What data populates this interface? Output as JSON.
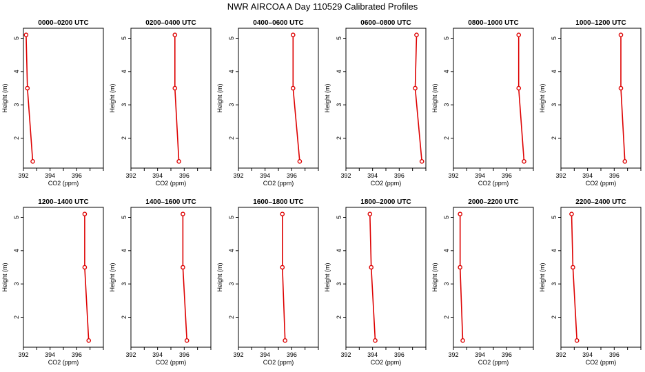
{
  "title": "NWR AIRCOA A  Day 110529  Calibrated Profiles",
  "colors": {
    "series": "#dd0000",
    "frame": "#000000",
    "background": "#ffffff"
  },
  "chart_data": [
    {
      "type": "line",
      "title": "0000–0200 UTC",
      "xlabel": "CO2 (ppm)",
      "ylabel": "Height (m)",
      "xlim": [
        392,
        398
      ],
      "ylim": [
        1.1,
        5.3
      ],
      "xticks": [
        392,
        394,
        396
      ],
      "yticks": [
        2,
        3,
        4,
        5
      ],
      "grid": false,
      "x": [
        392.2,
        392.3,
        392.7
      ],
      "y": [
        5.1,
        3.5,
        1.3
      ]
    },
    {
      "type": "line",
      "title": "0200–0400 UTC",
      "xlabel": "CO2 (ppm)",
      "ylabel": "Height (m)",
      "xlim": [
        392,
        398
      ],
      "ylim": [
        1.1,
        5.3
      ],
      "xticks": [
        392,
        394,
        396
      ],
      "yticks": [
        2,
        3,
        4,
        5
      ],
      "grid": false,
      "x": [
        395.3,
        395.3,
        395.6
      ],
      "y": [
        5.1,
        3.5,
        1.3
      ]
    },
    {
      "type": "line",
      "title": "0400–0600 UTC",
      "xlabel": "CO2 (ppm)",
      "ylabel": "Height (m)",
      "xlim": [
        392,
        398
      ],
      "ylim": [
        1.1,
        5.3
      ],
      "xticks": [
        392,
        394,
        396
      ],
      "yticks": [
        2,
        3,
        4,
        5
      ],
      "grid": false,
      "x": [
        396.1,
        396.1,
        396.6
      ],
      "y": [
        5.1,
        3.5,
        1.3
      ]
    },
    {
      "type": "line",
      "title": "0600–0800 UTC",
      "xlabel": "CO2 (ppm)",
      "ylabel": "Height (m)",
      "xlim": [
        392,
        398
      ],
      "ylim": [
        1.1,
        5.3
      ],
      "xticks": [
        392,
        394,
        396
      ],
      "yticks": [
        2,
        3,
        4,
        5
      ],
      "grid": false,
      "x": [
        397.3,
        397.2,
        397.7
      ],
      "y": [
        5.1,
        3.5,
        1.3
      ]
    },
    {
      "type": "line",
      "title": "0800–1000 UTC",
      "xlabel": "CO2 (ppm)",
      "ylabel": "Height (m)",
      "xlim": [
        392,
        398
      ],
      "ylim": [
        1.1,
        5.3
      ],
      "xticks": [
        392,
        394,
        396
      ],
      "yticks": [
        2,
        3,
        4,
        5
      ],
      "grid": false,
      "x": [
        396.9,
        396.9,
        397.3
      ],
      "y": [
        5.1,
        3.5,
        1.3
      ]
    },
    {
      "type": "line",
      "title": "1000–1200 UTC",
      "xlabel": "CO2 (ppm)",
      "ylabel": "Height (m)",
      "xlim": [
        392,
        398
      ],
      "ylim": [
        1.1,
        5.3
      ],
      "xticks": [
        392,
        394,
        396
      ],
      "yticks": [
        2,
        3,
        4,
        5
      ],
      "grid": false,
      "x": [
        396.5,
        396.5,
        396.8
      ],
      "y": [
        5.1,
        3.5,
        1.3
      ]
    },
    {
      "type": "line",
      "title": "1200–1400 UTC",
      "xlabel": "CO2 (ppm)",
      "ylabel": "Height (m)",
      "xlim": [
        392,
        398
      ],
      "ylim": [
        1.1,
        5.3
      ],
      "xticks": [
        392,
        394,
        396
      ],
      "yticks": [
        2,
        3,
        4,
        5
      ],
      "grid": false,
      "x": [
        396.6,
        396.6,
        396.9
      ],
      "y": [
        5.1,
        3.5,
        1.3
      ]
    },
    {
      "type": "line",
      "title": "1400–1600 UTC",
      "xlabel": "CO2 (ppm)",
      "ylabel": "Height (m)",
      "xlim": [
        392,
        398
      ],
      "ylim": [
        1.1,
        5.3
      ],
      "xticks": [
        392,
        394,
        396
      ],
      "yticks": [
        2,
        3,
        4,
        5
      ],
      "grid": false,
      "x": [
        395.9,
        395.9,
        396.2
      ],
      "y": [
        5.1,
        3.5,
        1.3
      ]
    },
    {
      "type": "line",
      "title": "1600–1800 UTC",
      "xlabel": "CO2 (ppm)",
      "ylabel": "Height (m)",
      "xlim": [
        392,
        398
      ],
      "ylim": [
        1.1,
        5.3
      ],
      "xticks": [
        392,
        394,
        396
      ],
      "yticks": [
        2,
        3,
        4,
        5
      ],
      "grid": false,
      "x": [
        395.3,
        395.3,
        395.5
      ],
      "y": [
        5.1,
        3.5,
        1.3
      ]
    },
    {
      "type": "line",
      "title": "1800–2000 UTC",
      "xlabel": "CO2 (ppm)",
      "ylabel": "Height (m)",
      "xlim": [
        392,
        398
      ],
      "ylim": [
        1.1,
        5.3
      ],
      "xticks": [
        392,
        394,
        396
      ],
      "yticks": [
        2,
        3,
        4,
        5
      ],
      "grid": false,
      "x": [
        393.8,
        393.9,
        394.2
      ],
      "y": [
        5.1,
        3.5,
        1.3
      ]
    },
    {
      "type": "line",
      "title": "2000–2200 UTC",
      "xlabel": "CO2 (ppm)",
      "ylabel": "Height (m)",
      "xlim": [
        392,
        398
      ],
      "ylim": [
        1.1,
        5.3
      ],
      "xticks": [
        392,
        394,
        396
      ],
      "yticks": [
        2,
        3,
        4,
        5
      ],
      "grid": false,
      "x": [
        392.5,
        392.5,
        392.7
      ],
      "y": [
        5.1,
        3.5,
        1.3
      ]
    },
    {
      "type": "line",
      "title": "2200–2400 UTC",
      "xlabel": "CO2 (ppm)",
      "ylabel": "Height (m)",
      "xlim": [
        392,
        398
      ],
      "ylim": [
        1.1,
        5.3
      ],
      "xticks": [
        392,
        394,
        396
      ],
      "yticks": [
        2,
        3,
        4,
        5
      ],
      "grid": false,
      "x": [
        392.8,
        392.9,
        393.2
      ],
      "y": [
        5.1,
        3.5,
        1.3
      ]
    }
  ]
}
